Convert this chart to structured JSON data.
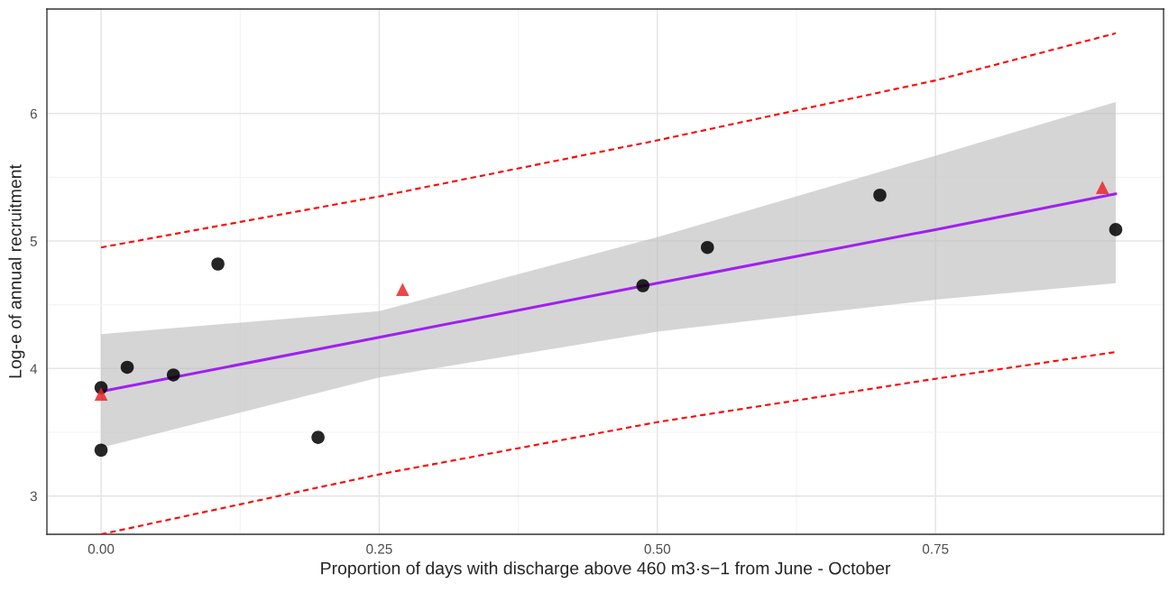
{
  "chart_data": {
    "type": "scatter",
    "xlabel": "Proportion of days with discharge above 460 m3·s−1 from June - October",
    "ylabel": "Log-e of annual recruitment",
    "xlim": [
      -0.0487,
      0.955
    ],
    "xticks": [
      {
        "value": 0,
        "label": "0.00"
      },
      0.25,
      {
        "value": 0.5,
        "label": "0.50"
      },
      0.75
    ],
    "ylim": [
      2.7,
      6.82
    ],
    "yticks": [
      3,
      4,
      5,
      6
    ],
    "grid": true,
    "legend": false,
    "series": [
      {
        "type": "line",
        "color": "#a020f0",
        "line_style": "solid",
        "marker": "none",
        "x": [
          0,
          0.25,
          0.5,
          0.75,
          0.912
        ],
        "values": [
          3.82,
          4.245,
          4.67,
          5.09,
          5.37
        ],
        "lower": [
          3.38,
          3.93,
          4.29,
          4.54,
          4.67
        ],
        "upper": [
          4.27,
          4.45,
          5.03,
          5.67,
          6.09
        ]
      },
      {
        "type": "line",
        "color": "#ff0000",
        "line_style": "dashed",
        "marker": "none",
        "x": [
          0,
          0.25,
          0.5,
          0.75,
          0.912
        ],
        "values": [
          4.95,
          5.35,
          5.79,
          6.26,
          6.63
        ]
      },
      {
        "type": "line",
        "color": "#ff0000",
        "line_style": "dashed",
        "marker": "none",
        "x": [
          0,
          0.25,
          0.5,
          0.75,
          0.912
        ],
        "values": [
          2.7,
          3.17,
          3.58,
          3.92,
          4.13
        ]
      },
      {
        "color": "#000000",
        "marker": "circle",
        "x": [
          0,
          0,
          0.0235,
          0.065,
          0.105,
          0.195,
          0.487,
          0.545,
          0.7,
          0.912
        ],
        "values": [
          3.85,
          3.36,
          4.01,
          3.95,
          4.82,
          3.46,
          4.65,
          4.95,
          5.36,
          5.09
        ]
      },
      {
        "color": "#e8262a",
        "marker": "triangle",
        "x": [
          0,
          0.271,
          0.9
        ],
        "values": [
          3.8,
          4.62,
          5.42
        ]
      }
    ]
  }
}
